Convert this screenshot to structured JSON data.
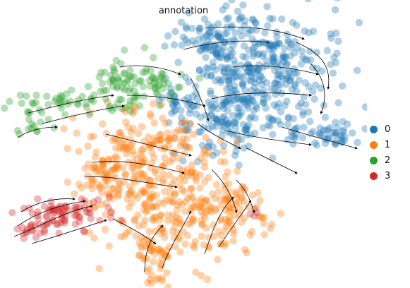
{
  "chart_data": {
    "type": "scatter",
    "title": "annotation",
    "xlabel": "",
    "ylabel": "",
    "grid": false,
    "axes_visible": false,
    "legend_position": "right",
    "overlay": "velocity streamlines with arrowheads",
    "series": [
      {
        "name": "0",
        "color": "#1f77b4"
      },
      {
        "name": "1",
        "color": "#ff7f0e"
      },
      {
        "name": "2",
        "color": "#2ca02c"
      },
      {
        "name": "3",
        "color": "#d62728"
      }
    ]
  }
}
